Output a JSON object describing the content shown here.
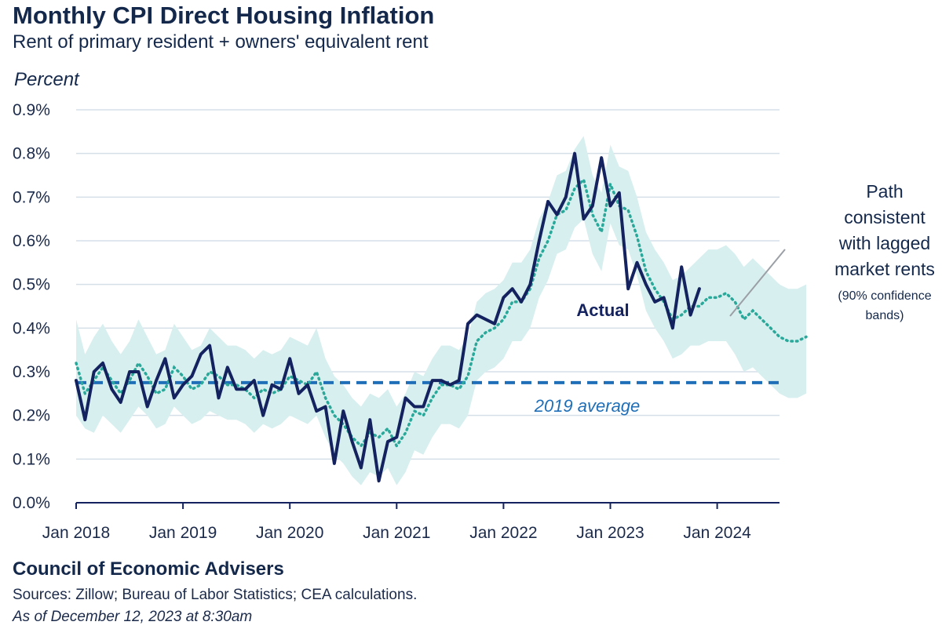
{
  "header": {
    "title": "Monthly CPI Direct Housing Inflation",
    "subtitle": "Rent of primary resident + owners' equivalent rent",
    "ylabel": "Percent"
  },
  "footer": {
    "org": "Council of Economic Advisers",
    "sources": "Sources: Zillow; Bureau of Labor Statistics; CEA calculations.",
    "as_of": "As of December 12, 2023 at 8:30am"
  },
  "chart_data": {
    "type": "line",
    "title": "Monthly CPI Direct Housing Inflation",
    "subtitle": "Rent of primary resident + owners' equivalent rent",
    "ylabel": "Percent",
    "ylim": [
      0,
      0.9
    ],
    "yticks": [
      0,
      0.1,
      0.2,
      0.3,
      0.4,
      0.5,
      0.6,
      0.7,
      0.8,
      0.9
    ],
    "ytick_labels": [
      "0.0%",
      "0.1%",
      "0.2%",
      "0.3%",
      "0.4%",
      "0.5%",
      "0.6%",
      "0.7%",
      "0.8%",
      "0.9%"
    ],
    "xlim": [
      "Jan 2018",
      "Aug 2024"
    ],
    "xtick_labels": [
      "Jan 2018",
      "Jan 2019",
      "Jan 2020",
      "Jan 2021",
      "Jan 2022",
      "Jan 2023",
      "Jan 2024"
    ],
    "grid": "horizontal",
    "colors": {
      "actual": "#14235f",
      "projection": "#2aa89a",
      "band": "#d8efef",
      "average": "#1f6fb8",
      "grid": "#d5dfe8"
    },
    "annotations": {
      "actual_label": "Actual",
      "average_label": "2019 average",
      "path_label_lines": [
        "Path",
        "consistent",
        "with lagged",
        "market rents"
      ],
      "band_label_lines": [
        "(90% confidence",
        "bands)"
      ]
    },
    "average_2019": 0.275,
    "series": [
      {
        "name": "Actual",
        "start": "Jan 2018",
        "values": [
          0.28,
          0.19,
          0.3,
          0.32,
          0.26,
          0.23,
          0.3,
          0.3,
          0.22,
          0.28,
          0.33,
          0.24,
          0.27,
          0.29,
          0.34,
          0.36,
          0.24,
          0.31,
          0.26,
          0.26,
          0.28,
          0.2,
          0.27,
          0.26,
          0.33,
          0.25,
          0.27,
          0.21,
          0.22,
          0.09,
          0.21,
          0.14,
          0.08,
          0.19,
          0.05,
          0.14,
          0.15,
          0.24,
          0.22,
          0.22,
          0.28,
          0.28,
          0.27,
          0.28,
          0.41,
          0.43,
          0.42,
          0.41,
          0.47,
          0.49,
          0.46,
          0.5,
          0.6,
          0.69,
          0.66,
          0.7,
          0.8,
          0.65,
          0.68,
          0.79,
          0.68,
          0.71,
          0.49,
          0.55,
          0.5,
          0.46,
          0.47,
          0.4,
          0.54,
          0.43,
          0.49
        ]
      },
      {
        "name": "Path consistent with lagged market rents",
        "start": "Jan 2018",
        "values": [
          0.32,
          0.25,
          0.28,
          0.31,
          0.28,
          0.25,
          0.28,
          0.32,
          0.29,
          0.25,
          0.26,
          0.31,
          0.29,
          0.26,
          0.27,
          0.3,
          0.29,
          0.27,
          0.27,
          0.26,
          0.24,
          0.26,
          0.25,
          0.26,
          0.29,
          0.28,
          0.27,
          0.3,
          0.24,
          0.2,
          0.18,
          0.15,
          0.13,
          0.16,
          0.15,
          0.17,
          0.13,
          0.16,
          0.21,
          0.2,
          0.24,
          0.27,
          0.27,
          0.26,
          0.29,
          0.37,
          0.39,
          0.4,
          0.42,
          0.46,
          0.46,
          0.49,
          0.56,
          0.6,
          0.66,
          0.67,
          0.72,
          0.74,
          0.66,
          0.62,
          0.73,
          0.68,
          0.67,
          0.61,
          0.53,
          0.49,
          0.46,
          0.42,
          0.43,
          0.45,
          0.45,
          0.47,
          0.47,
          0.48,
          0.46,
          0.42,
          0.44,
          0.42,
          0.4,
          0.38,
          0.37,
          0.37,
          0.38
        ]
      }
    ],
    "confidence_band": {
      "name": "90% confidence bands",
      "start": "Jan 2018",
      "lower": [
        0.2,
        0.17,
        0.16,
        0.2,
        0.18,
        0.16,
        0.19,
        0.22,
        0.2,
        0.17,
        0.18,
        0.22,
        0.2,
        0.18,
        0.19,
        0.21,
        0.2,
        0.19,
        0.19,
        0.18,
        0.16,
        0.18,
        0.17,
        0.18,
        0.2,
        0.19,
        0.18,
        0.2,
        0.15,
        0.11,
        0.09,
        0.06,
        0.04,
        0.07,
        0.06,
        0.08,
        0.04,
        0.07,
        0.12,
        0.11,
        0.15,
        0.18,
        0.18,
        0.17,
        0.2,
        0.28,
        0.3,
        0.31,
        0.33,
        0.37,
        0.37,
        0.4,
        0.47,
        0.51,
        0.57,
        0.58,
        0.63,
        0.65,
        0.57,
        0.53,
        0.64,
        0.59,
        0.58,
        0.52,
        0.44,
        0.4,
        0.37,
        0.33,
        0.34,
        0.36,
        0.36,
        0.37,
        0.37,
        0.37,
        0.34,
        0.3,
        0.31,
        0.29,
        0.27,
        0.25,
        0.24,
        0.24,
        0.25
      ],
      "upper": [
        0.42,
        0.34,
        0.38,
        0.41,
        0.37,
        0.34,
        0.37,
        0.42,
        0.38,
        0.34,
        0.35,
        0.41,
        0.38,
        0.35,
        0.36,
        0.4,
        0.38,
        0.36,
        0.36,
        0.35,
        0.33,
        0.35,
        0.34,
        0.35,
        0.38,
        0.37,
        0.36,
        0.4,
        0.33,
        0.29,
        0.27,
        0.24,
        0.22,
        0.25,
        0.24,
        0.26,
        0.22,
        0.25,
        0.3,
        0.29,
        0.33,
        0.36,
        0.36,
        0.35,
        0.38,
        0.46,
        0.48,
        0.49,
        0.51,
        0.55,
        0.55,
        0.58,
        0.65,
        0.69,
        0.75,
        0.76,
        0.81,
        0.84,
        0.75,
        0.71,
        0.82,
        0.77,
        0.76,
        0.7,
        0.62,
        0.58,
        0.55,
        0.51,
        0.52,
        0.54,
        0.56,
        0.58,
        0.58,
        0.59,
        0.57,
        0.54,
        0.56,
        0.54,
        0.52,
        0.5,
        0.49,
        0.49,
        0.5
      ]
    }
  }
}
